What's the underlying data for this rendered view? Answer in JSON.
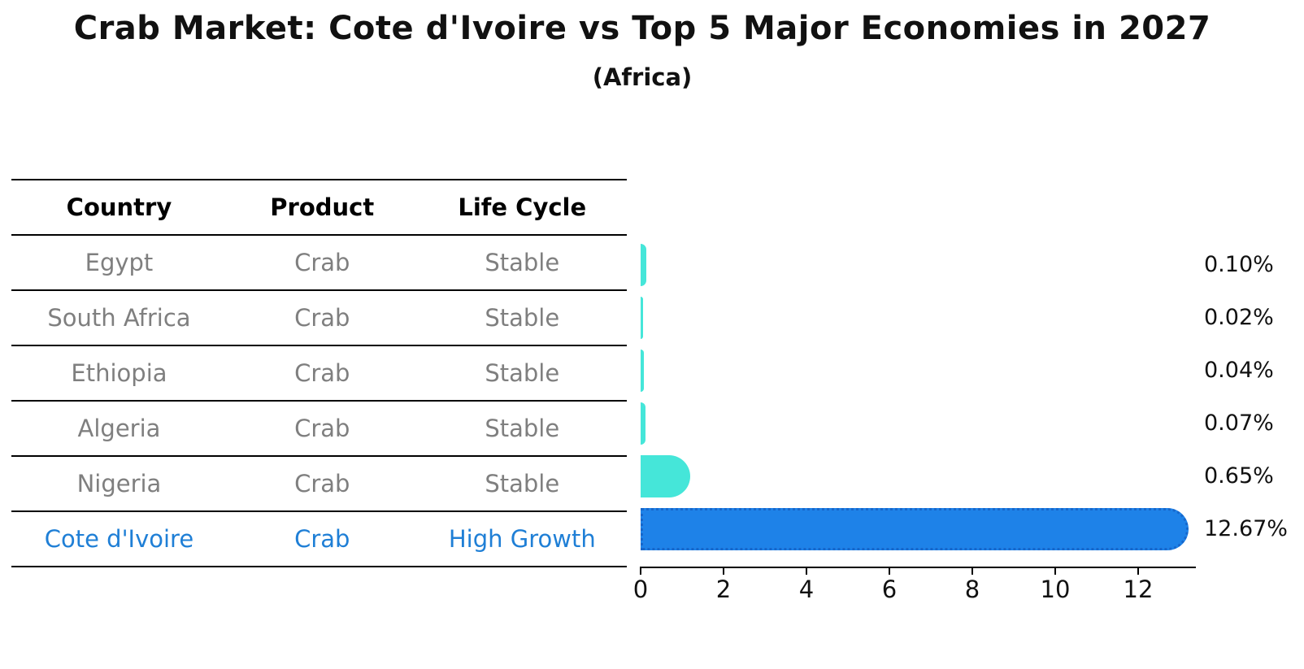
{
  "title": "Crab Market: Cote d'Ivoire vs Top 5 Major Economies in 2027",
  "subtitle": "(Africa)",
  "table": {
    "headers": [
      "Country",
      "Product",
      "Life Cycle"
    ],
    "rows": [
      {
        "country": "Egypt",
        "product": "Crab",
        "life_cycle": "Stable",
        "highlight": false
      },
      {
        "country": "South Africa",
        "product": "Crab",
        "life_cycle": "Stable",
        "highlight": false
      },
      {
        "country": "Ethiopia",
        "product": "Crab",
        "life_cycle": "Stable",
        "highlight": false
      },
      {
        "country": "Algeria",
        "product": "Crab",
        "life_cycle": "Stable",
        "highlight": false
      },
      {
        "country": "Nigeria",
        "product": "Crab",
        "life_cycle": "Stable",
        "highlight": false
      },
      {
        "country": "Cote d'Ivoire",
        "product": "Crab",
        "life_cycle": "High Growth",
        "highlight": true
      }
    ]
  },
  "chart_data": {
    "type": "bar",
    "orientation": "horizontal",
    "title": "Crab Market: Cote d'Ivoire vs Top 5 Major Economies in 2027 (Africa)",
    "categories": [
      "Egypt",
      "South Africa",
      "Ethiopia",
      "Algeria",
      "Nigeria",
      "Cote d'Ivoire"
    ],
    "values": [
      0.1,
      0.02,
      0.04,
      0.07,
      0.65,
      12.67
    ],
    "value_labels": [
      "0.10%",
      "0.02%",
      "0.04%",
      "0.07%",
      "0.65%",
      "12.67%"
    ],
    "xticks": [
      "0",
      "2",
      "4",
      "6",
      "8",
      "10",
      "12"
    ],
    "xtick_values": [
      0,
      2,
      4,
      6,
      8,
      10,
      12
    ],
    "xlim": [
      0,
      13.4
    ],
    "grid": false,
    "legend_position": "none",
    "highlight_index": 5,
    "value_label_position": "right-of-axis"
  },
  "colors": {
    "bar_default": "#45e6d9",
    "bar_highlight": "#1e82e8",
    "bar_highlight_edge": "#1767cb",
    "table_text": "#7f7f7f",
    "table_highlight_text": "#1f7fd6",
    "header_text": "#000000",
    "axis": "#000000",
    "background": "#ffffff"
  }
}
